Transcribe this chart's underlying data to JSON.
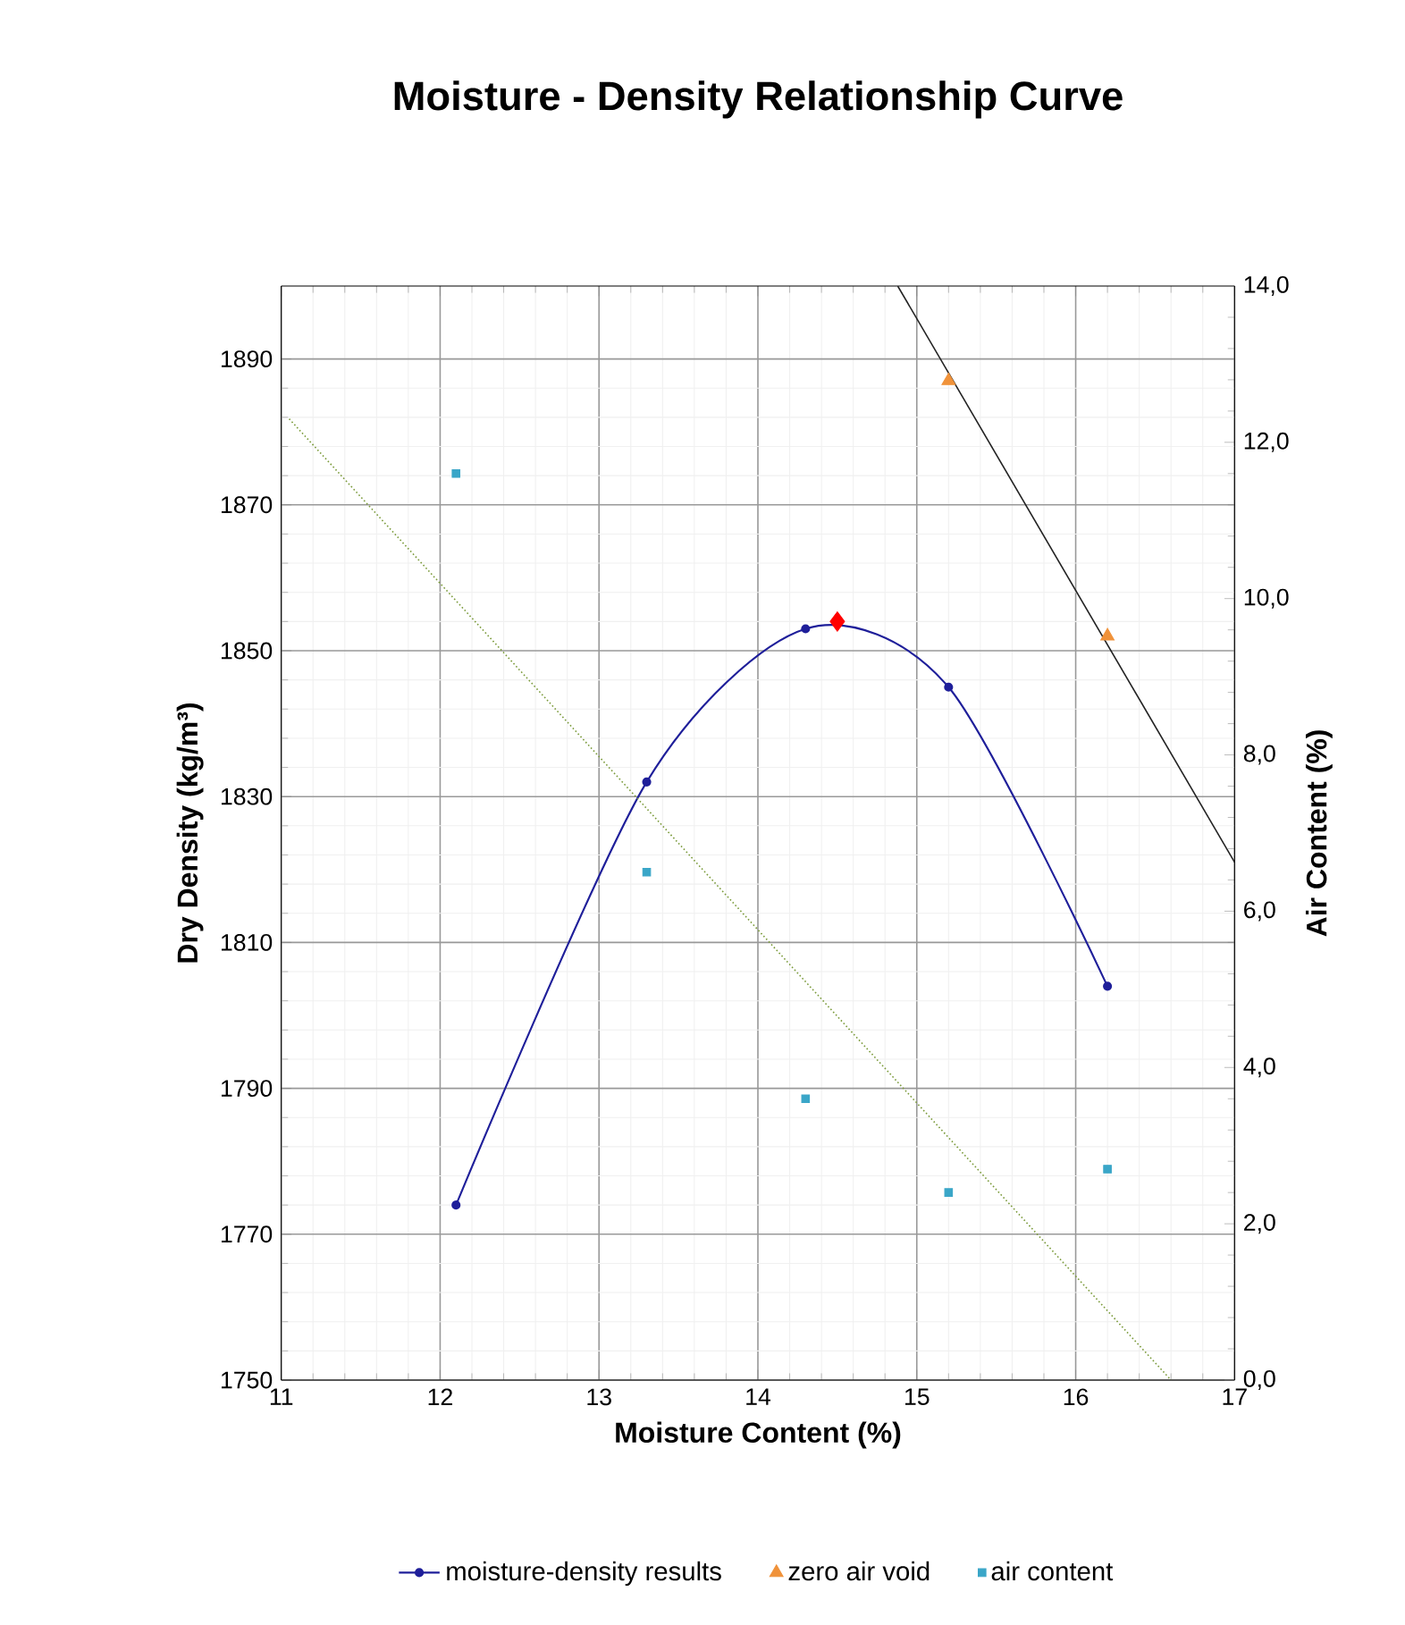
{
  "chart_data": {
    "type": "line",
    "title": "Moisture - Density Relationship Curve",
    "xlabel": "Moisture Content (%)",
    "ylabel": "Dry Density (kg/m³)",
    "y2label": "Air Content (%)",
    "xlim": [
      11,
      17
    ],
    "xticks": [
      11,
      12,
      13,
      14,
      15,
      16,
      17
    ],
    "ylim": [
      1750,
      1900
    ],
    "yticks": [
      1750,
      1770,
      1790,
      1810,
      1830,
      1850,
      1870,
      1890
    ],
    "y2lim": [
      0,
      14
    ],
    "y2ticks": [
      {
        "value": 0,
        "label": "0,0"
      },
      {
        "value": 2,
        "label": "2,0"
      },
      {
        "value": 4,
        "label": "4,0"
      },
      {
        "value": 6,
        "label": "6,0"
      },
      {
        "value": 8,
        "label": "8,0"
      },
      {
        "value": 10,
        "label": "10,0"
      },
      {
        "value": 12,
        "label": "12,0"
      },
      {
        "value": 14,
        "label": "14,0"
      }
    ],
    "grid": true,
    "legend": "bottom",
    "series": [
      {
        "name": "moisture-density results",
        "color": "#1f1f9a",
        "marker": "circle",
        "x": [
          12.1,
          13.3,
          14.3,
          15.2,
          16.2
        ],
        "values": [
          1774,
          1832,
          1853,
          1845,
          1804
        ]
      },
      {
        "type": "scatter",
        "color": "#ff0000",
        "marker": "diamond",
        "x": [
          14.5
        ],
        "values": [
          1854
        ]
      },
      {
        "type": "line",
        "color": "#222222",
        "marker": "none",
        "x": [
          14.88,
          17
        ],
        "values": [
          1900,
          1821
        ]
      },
      {
        "name": "zero air void",
        "type": "scatter",
        "color": "#f0923a",
        "marker": "triangle",
        "x": [
          15.2,
          16.2
        ],
        "values": [
          1887,
          1852
        ]
      },
      {
        "name": "air content",
        "type": "scatter",
        "axis": "y2",
        "color": "#3aa6c8",
        "marker": "square",
        "x": [
          12.1,
          13.3,
          14.3,
          15.2,
          16.2
        ],
        "values": [
          11.6,
          6.5,
          3.6,
          2.4,
          2.7
        ]
      },
      {
        "type": "line",
        "axis": "y2",
        "color": "#7a9a3a",
        "marker": "none",
        "line_style": "dotted",
        "x": [
          11.05,
          16.6
        ],
        "values": [
          12.3,
          0
        ]
      }
    ]
  }
}
